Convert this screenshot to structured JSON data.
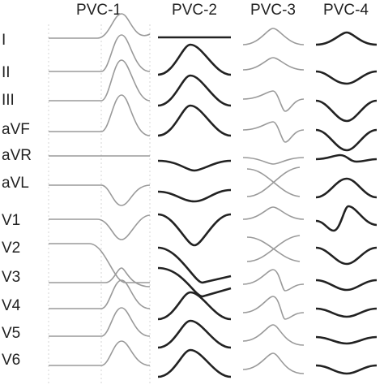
{
  "headers": [
    "PVC-1",
    "PVC-2",
    "PVC-3",
    "PVC-4"
  ],
  "leads": [
    "I",
    "II",
    "III",
    "aVF",
    "aVR",
    "aVL",
    "V1",
    "V2",
    "V3",
    "V4",
    "V5",
    "V6"
  ]
}
